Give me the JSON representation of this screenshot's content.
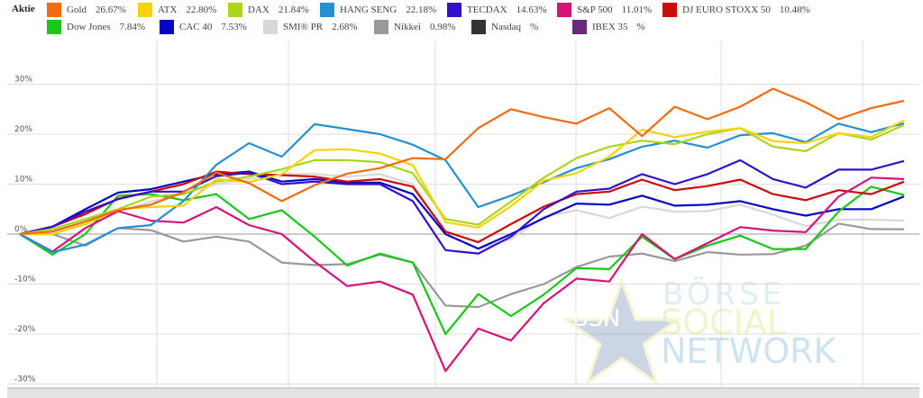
{
  "legend": {
    "title": "Aktie",
    "items": [
      {
        "name": "Gold",
        "value": "26.67%",
        "color": "#f26b0f"
      },
      {
        "name": "ATX",
        "value": "22.80%",
        "color": "#f7d20a"
      },
      {
        "name": "DAX",
        "value": "21.84%",
        "color": "#aad61a"
      },
      {
        "name": "HANG SENG",
        "value": "22.18%",
        "color": "#2391d1"
      },
      {
        "name": "TECDAX",
        "value": "14.63%",
        "color": "#3311cc"
      },
      {
        "name": "S&P 500",
        "value": "11.01%",
        "color": "#d4137a"
      },
      {
        "name": "DJ EURO STOXX 50",
        "value": "10.48%",
        "color": "#cc0a0a"
      },
      {
        "name": "Dow Jones",
        "value": "7.84%",
        "color": "#18c718"
      },
      {
        "name": "CAC 40",
        "value": "7.53%",
        "color": "#0505c4"
      },
      {
        "name": "SMI® PR",
        "value": "2.68%",
        "color": "#d8d8d8"
      },
      {
        "name": "Nikkei",
        "value": "0.98%",
        "color": "#999999"
      },
      {
        "name": "Nasdaq",
        "value": "%",
        "color": "#333333"
      },
      {
        "name": "IBEX 35",
        "value": "%",
        "color": "#6a2a7a"
      }
    ]
  },
  "watermark": {
    "line1": "BÖRSE",
    "line2": "SOCIAL",
    "line3": "NETWORK",
    "badge": "BSN"
  },
  "chart_data": {
    "type": "line",
    "title": "",
    "xlabel": "",
    "ylabel": "",
    "ylim": [
      -30,
      30
    ],
    "yticks": [
      -30,
      -20,
      -10,
      0,
      10,
      20,
      30
    ],
    "ytick_labels": [
      "-30%",
      "-20%",
      "-10%",
      "0%",
      "10%",
      "20%",
      "30%"
    ],
    "grid": true,
    "legend_position": "top",
    "points": 28,
    "series": [
      {
        "name": "Gold",
        "values": [
          0,
          0.5,
          2.5,
          4.8,
          5.9,
          8.4,
          12.3,
          10.2,
          6.6,
          9.8,
          12.1,
          13.2,
          15.2,
          15,
          21.2,
          25,
          23.4,
          22.1,
          25.2,
          19.6,
          25.5,
          23,
          25.5,
          29.1,
          26.4,
          23,
          25.2,
          26.67
        ]
      },
      {
        "name": "ATX",
        "values": [
          0,
          0,
          2,
          5,
          5.4,
          5.7,
          11,
          10.4,
          12,
          16.8,
          17,
          16.1,
          13.8,
          2.4,
          1.3,
          5.6,
          10.7,
          12.2,
          15.5,
          20.9,
          19.4,
          20.5,
          21.2,
          18.6,
          18.2,
          20.2,
          19.4,
          22.8
        ]
      },
      {
        "name": "DAX",
        "values": [
          0,
          1,
          3,
          5,
          7.5,
          8,
          10.5,
          11.5,
          13,
          14.8,
          14.8,
          14.4,
          12.2,
          3,
          1.9,
          6.5,
          11.3,
          15.2,
          17.5,
          18.7,
          18,
          20,
          21.2,
          17.5,
          16.6,
          20.2,
          18.9,
          21.84
        ]
      },
      {
        "name": "HANG SENG",
        "values": [
          0,
          -3.6,
          -2.1,
          1.2,
          1.8,
          6.6,
          13.9,
          18.2,
          15.5,
          22,
          21,
          20,
          17.9,
          14.8,
          5.4,
          7.7,
          10.4,
          13.2,
          15,
          17.5,
          18.7,
          17.3,
          19.8,
          20.2,
          18.4,
          22.1,
          20.4,
          22.18
        ]
      },
      {
        "name": "TECDAX",
        "values": [
          0,
          1.5,
          4.5,
          7,
          8.5,
          8.5,
          11.6,
          12.3,
          10,
          10.5,
          10,
          10,
          6.6,
          -3.2,
          -3.9,
          -0.5,
          5,
          8.5,
          9.1,
          12,
          10,
          12,
          14.8,
          11,
          9.3,
          12.9,
          12.9,
          14.63
        ]
      },
      {
        "name": "S&P 500",
        "values": [
          0,
          -3.5,
          1.2,
          4.6,
          2.7,
          2.3,
          5.4,
          1.8,
          0,
          -5.5,
          -10.4,
          -9.5,
          -12.1,
          -27.4,
          -18.9,
          -21.3,
          -13.8,
          -8.9,
          -9.5,
          0,
          -5,
          -1.8,
          1.4,
          0.7,
          0.4,
          7.5,
          11.3,
          11.01
        ]
      },
      {
        "name": "DJ EURO STOXX 50",
        "values": [
          0,
          1.5,
          4,
          7.1,
          8.5,
          10,
          12.5,
          12,
          11.8,
          11.5,
          10.5,
          11,
          9.5,
          0.5,
          -1.6,
          2,
          5.5,
          8,
          8.5,
          10.9,
          8.8,
          9.6,
          10.9,
          8,
          6.8,
          8.8,
          8,
          10.48
        ]
      },
      {
        "name": "Dow Jones",
        "values": [
          0,
          -4.1,
          0,
          7.7,
          8,
          6.8,
          8,
          3,
          4.8,
          -0.5,
          -6.3,
          -3.9,
          -5.7,
          -20,
          -12,
          -16.4,
          -12.1,
          -6.8,
          -7,
          -0.5,
          -5,
          -2.3,
          -0.3,
          -3,
          -3,
          4.5,
          9.5,
          7.84
        ]
      },
      {
        "name": "CAC 40",
        "values": [
          0,
          1.5,
          5,
          8.3,
          9,
          10.5,
          12,
          12.5,
          10.5,
          11,
          10.3,
          10.3,
          8,
          0,
          -2.9,
          0,
          3.2,
          6.1,
          5.9,
          7.7,
          5.7,
          5.9,
          6.6,
          5,
          3.7,
          5,
          5,
          7.53
        ]
      },
      {
        "name": "SMI® PR",
        "values": [
          0,
          1,
          2,
          4.5,
          6.5,
          8,
          10,
          11,
          12,
          12,
          11.5,
          12,
          10,
          0,
          -3,
          -1,
          3.5,
          4.8,
          3.2,
          5.5,
          4.5,
          4.6,
          5.9,
          3.9,
          1.6,
          2.9,
          2.9,
          2.68
        ]
      },
      {
        "name": "Nikkei",
        "values": [
          0,
          0,
          -2.3,
          1.2,
          0.8,
          -1.5,
          -0.5,
          -1.5,
          -5.7,
          -6.2,
          -6,
          -4.1,
          -5.7,
          -14.3,
          -14.6,
          -12,
          -10,
          -6.6,
          -4.5,
          -3.9,
          -5.4,
          -3.6,
          -4.1,
          -4,
          -2.3,
          2.1,
          1,
          0.98
        ]
      }
    ]
  }
}
